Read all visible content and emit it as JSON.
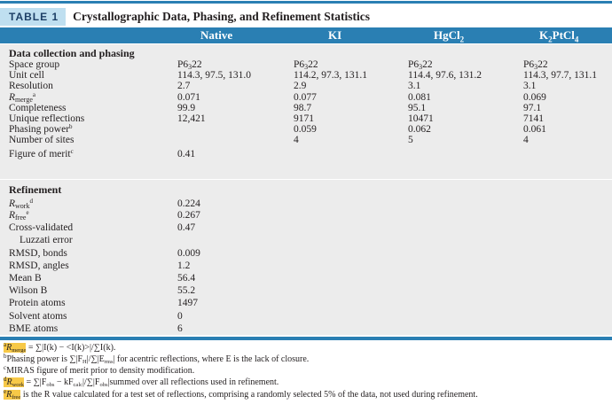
{
  "table": {
    "label": "TABLE 1",
    "title": "Crystallographic Data, Phasing, and Refinement Statistics"
  },
  "columns": {
    "native": "Native",
    "ki": "KI",
    "hgcl2_base": "HgCl",
    "hgcl2_sub": "2",
    "k2ptcl4_k": "K",
    "k2ptcl4_sub1": "2",
    "k2ptcl4_mid": "PtCl",
    "k2ptcl4_sub2": "4"
  },
  "data_collection": {
    "title": "Data collection and phasing",
    "space_group": {
      "label": "Space group",
      "native": "P6",
      "native_sub": "3",
      "native_end": "22",
      "ki": "P6",
      "ki_sub": "3",
      "ki_end": "22",
      "hgcl2": "P6",
      "hgcl2_sub": "3",
      "hgcl2_end": "22",
      "k2ptcl4": "P6",
      "k2ptcl4_sub": "3",
      "k2ptcl4_end": "22"
    },
    "unit_cell": {
      "label": "Unit cell",
      "native": "114.3, 97.5, 131.0",
      "ki": "114.2, 97.3, 131.1",
      "hgcl2": "114.4, 97.6, 131.2",
      "k2ptcl4": "114.3, 97.7, 131.1"
    },
    "resolution": {
      "label": "Resolution",
      "native": "2.7",
      "ki": "2.9",
      "hgcl2": "3.1",
      "k2ptcl4": "3.1"
    },
    "rmerge": {
      "label": "R",
      "label_sub": "merge",
      "label_sup": "a",
      "native": "0.071",
      "ki": "0.077",
      "hgcl2": "0.081",
      "k2ptcl4": "0.069"
    },
    "completeness": {
      "label": "Completeness",
      "native": "99.9",
      "ki": "98.7",
      "hgcl2": "95.1",
      "k2ptcl4": "97.1"
    },
    "unique_reflections": {
      "label": "Unique reflections",
      "native": "12,421",
      "ki": "9171",
      "hgcl2": "10471",
      "k2ptcl4": "7141"
    },
    "phasing_power": {
      "label": "Phasing power",
      "label_sup": "b",
      "ki": "0.059",
      "hgcl2": "0.062",
      "k2ptcl4": "0.061"
    },
    "number_of_sites": {
      "label": "Number of sites",
      "ki": "4",
      "hgcl2": "5",
      "k2ptcl4": "4"
    },
    "figure_of_merit": {
      "label": "Figure of merit",
      "label_sup": "c",
      "native": "0.41"
    }
  },
  "refinement": {
    "title": "Refinement",
    "rwork": {
      "label": "R",
      "label_sub": "work",
      "label_sup": "d",
      "value": "0.224"
    },
    "rfree": {
      "label": "R",
      "label_sub": "free",
      "label_sup": "e",
      "value": "0.267"
    },
    "cross_validated": {
      "label": "Cross-validated",
      "label2": "Luzzati error",
      "value": "0.47"
    },
    "rmsd_bonds": {
      "label": "RMSD, bonds",
      "value": "0.009"
    },
    "rmsd_angles": {
      "label": "RMSD, angles",
      "value": "1.2"
    },
    "mean_b": {
      "label": "Mean B",
      "value": "56.4"
    },
    "wilson_b": {
      "label": "Wilson B",
      "value": "55.2"
    },
    "protein_atoms": {
      "label": "Protein atoms",
      "value": "1497"
    },
    "solvent_atoms": {
      "label": "Solvent atoms",
      "value": "0"
    },
    "bme_atoms": {
      "label": "BME atoms",
      "value": "6"
    }
  },
  "footnotes": {
    "a": {
      "mark": "a",
      "r": "R",
      "sub": "merge",
      "text": " = ∑|I(k) − <I(k)>|/∑I(k)."
    },
    "b": {
      "mark": "b",
      "text1": "Phasing power is ∑|F",
      "sub1": "H",
      "text2": "|/∑|E",
      "sub2": "rms",
      "text3": "| for acentric reflections, where E is the lack of closure."
    },
    "c": {
      "mark": "c",
      "text": "MIRAS figure of merit prior to density modification."
    },
    "d": {
      "mark": "d",
      "r": "R",
      "sub": "work",
      "text1": " = ∑|F",
      "sub1": "obs",
      "text2": " − kF",
      "sub2": "calc",
      "text3": "|/∑|F",
      "sub3": "obs",
      "text4": "|summed over all reflections used in refinement."
    },
    "e": {
      "mark": "e",
      "r": "R",
      "sub": "free",
      "text": " is the R value calculated for a test set of reflections, comprising a randomly selected 5% of the data, not used during refinement."
    }
  },
  "colors": {
    "accent": "#2a7fb3",
    "tag_bg": "#bfdff0",
    "shade": "#ececec",
    "highlight": "#f7c948"
  }
}
